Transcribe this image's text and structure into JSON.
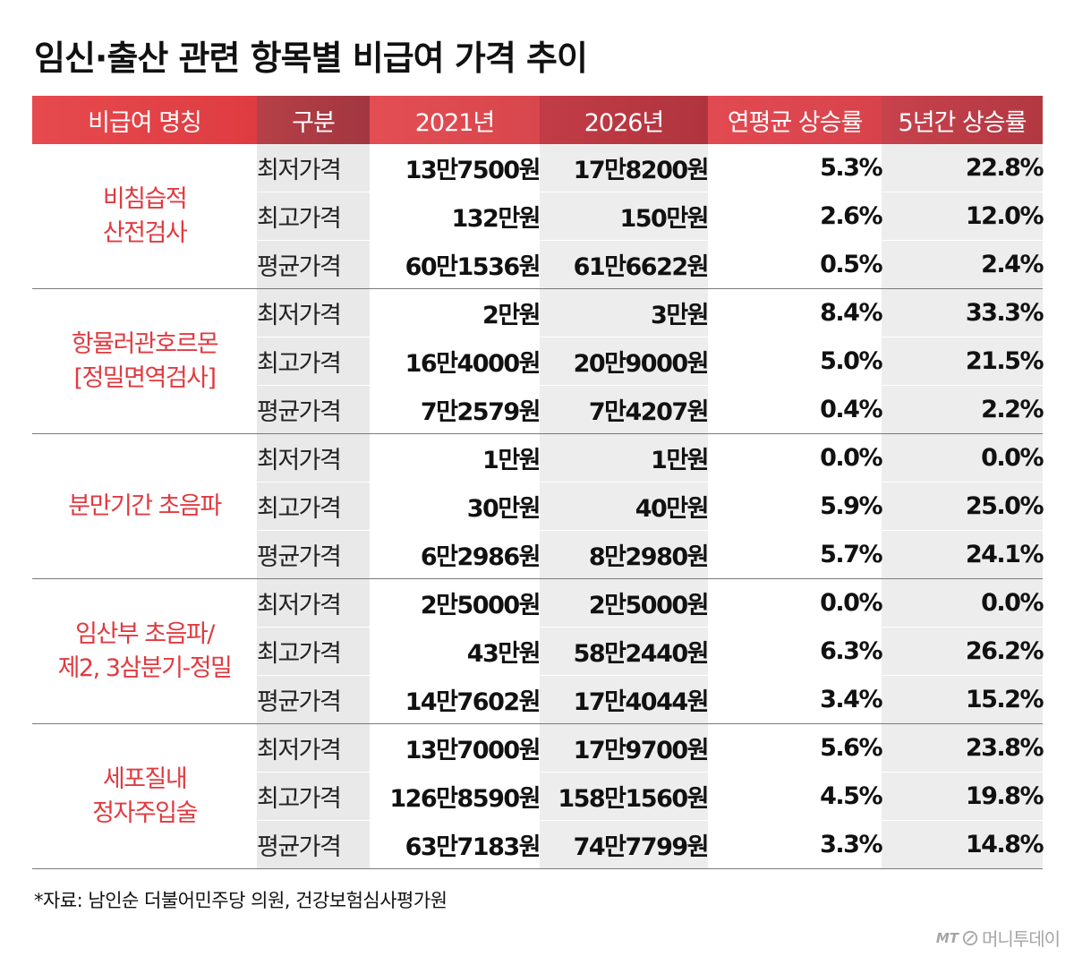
{
  "title": "임신·출산 관련 항목별 비급여 가격 추이",
  "chart_data": {
    "type": "table",
    "columns": [
      "비급여 명칭",
      "구분",
      "2021년",
      "2026년",
      "연평균 상승률",
      "5년간 상승률"
    ],
    "groups": [
      {
        "name_lines": [
          "비침습적",
          "산전검사"
        ],
        "rows": [
          {
            "kind": "최저가격",
            "y2021": "13만7500원",
            "y2026": "17만8200원",
            "annual": "5.3%",
            "five_year": "22.8%"
          },
          {
            "kind": "최고가격",
            "y2021": "132만원",
            "y2026": "150만원",
            "annual": "2.6%",
            "five_year": "12.0%"
          },
          {
            "kind": "평균가격",
            "y2021": "60만1536원",
            "y2026": "61만6622원",
            "annual": "0.5%",
            "five_year": "2.4%"
          }
        ]
      },
      {
        "name_lines": [
          "항뮬러관호르몬",
          "[정밀면역검사]"
        ],
        "rows": [
          {
            "kind": "최저가격",
            "y2021": "2만원",
            "y2026": "3만원",
            "annual": "8.4%",
            "five_year": "33.3%"
          },
          {
            "kind": "최고가격",
            "y2021": "16만4000원",
            "y2026": "20만9000원",
            "annual": "5.0%",
            "five_year": "21.5%"
          },
          {
            "kind": "평균가격",
            "y2021": "7만2579원",
            "y2026": "7만4207원",
            "annual": "0.4%",
            "five_year": "2.2%"
          }
        ]
      },
      {
        "name_lines": [
          "분만기간 초음파"
        ],
        "rows": [
          {
            "kind": "최저가격",
            "y2021": "1만원",
            "y2026": "1만원",
            "annual": "0.0%",
            "five_year": "0.0%"
          },
          {
            "kind": "최고가격",
            "y2021": "30만원",
            "y2026": "40만원",
            "annual": "5.9%",
            "five_year": "25.0%"
          },
          {
            "kind": "평균가격",
            "y2021": "6만2986원",
            "y2026": "8만2980원",
            "annual": "5.7%",
            "five_year": "24.1%"
          }
        ]
      },
      {
        "name_lines": [
          "임산부 초음파/",
          "제2, 3삼분기-정밀"
        ],
        "rows": [
          {
            "kind": "최저가격",
            "y2021": "2만5000원",
            "y2026": "2만5000원",
            "annual": "0.0%",
            "five_year": "0.0%"
          },
          {
            "kind": "최고가격",
            "y2021": "43만원",
            "y2026": "58만2440원",
            "annual": "6.3%",
            "five_year": "26.2%"
          },
          {
            "kind": "평균가격",
            "y2021": "14만7602원",
            "y2026": "17만4044원",
            "annual": "3.4%",
            "five_year": "15.2%"
          }
        ]
      },
      {
        "name_lines": [
          "세포질내",
          "정자주입술"
        ],
        "rows": [
          {
            "kind": "최저가격",
            "y2021": "13만7000원",
            "y2026": "17만9700원",
            "annual": "5.6%",
            "five_year": "23.8%"
          },
          {
            "kind": "최고가격",
            "y2021": "126만8590원",
            "y2026": "158만1560원",
            "annual": "4.5%",
            "five_year": "19.8%"
          },
          {
            "kind": "평균가격",
            "y2021": "63만7183원",
            "y2026": "74만7799원",
            "annual": "3.3%",
            "five_year": "14.8%"
          }
        ]
      }
    ]
  },
  "source": "*자료: 남인순 더불어민주당 의원, 건강보험심사평가원",
  "brand": {
    "prefix": "MT",
    "name": "머니투데이",
    "icon": "mt-logo-mark"
  },
  "colors": {
    "accent": "#e03a40",
    "header_red": "#df3c42",
    "header_dark": "#a23640",
    "shade": "#ededed"
  }
}
